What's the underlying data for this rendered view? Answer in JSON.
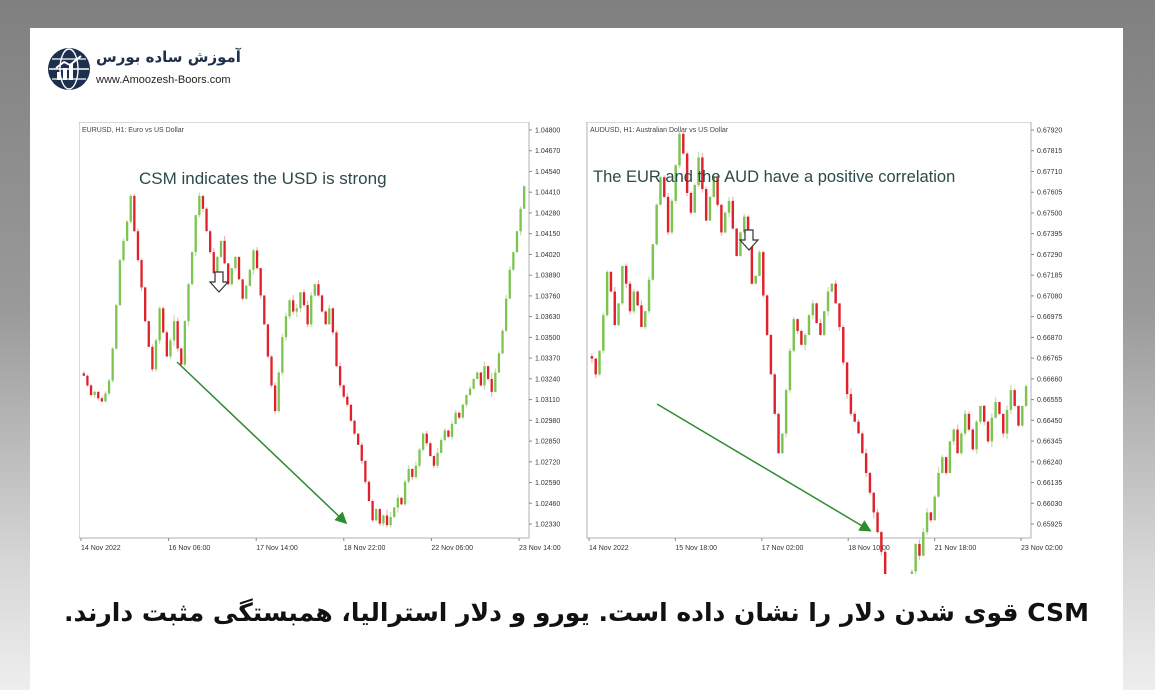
{
  "logo": {
    "title": "آموزش ساده بورس",
    "url": "www.Amoozesh-Boors.com",
    "icon": "globe-chart-icon"
  },
  "caption": "CSM قوی شدن دلار را نشان داده است. یورو و دلار استرالیا، همبستگی مثبت دارند.",
  "colors": {
    "bull": "#7cc450",
    "bear": "#e0202a",
    "bull_soft": "#c9dcb0",
    "bear_soft": "#e9b6b6",
    "arrow": "#2e8b2e",
    "annotation": "#2c4a4a"
  },
  "chart_data": [
    {
      "type": "candlestick",
      "symbol_label": "EURUSD, H1:  Euro vs US Dollar",
      "annotation": "CSM indicates the USD is strong",
      "trend_arrow": {
        "from": [
          "16 Nov 00:00",
          1.035
        ],
        "to": [
          "18 Nov 22:00",
          1.024
        ]
      },
      "marker_arrow": {
        "at": [
          "16 Nov 18:00",
          1.041
        ]
      },
      "x_ticks": [
        "14 Nov 2022",
        "16 Nov 06:00",
        "17 Nov 14:00",
        "18 Nov 22:00",
        "22 Nov 06:00",
        "23 Nov 14:00"
      ],
      "y_ticks": [
        "1.04800",
        "1.04670",
        "1.04540",
        "1.04410",
        "1.04280",
        "1.04150",
        "1.04020",
        "1.03890",
        "1.03760",
        "1.03630",
        "1.03500",
        "1.03370",
        "1.03240",
        "1.03110",
        "1.02980",
        "1.02850",
        "1.02720",
        "1.02590",
        "1.02460",
        "1.02330"
      ],
      "ylim": [
        1.0227,
        1.0486
      ],
      "closes": [
        1.0328,
        1.0322,
        1.0316,
        1.0318,
        1.0314,
        1.0312,
        1.0317,
        1.0325,
        1.0345,
        1.0372,
        1.04,
        1.0412,
        1.0424,
        1.044,
        1.0418,
        1.04,
        1.0383,
        1.0362,
        1.0346,
        1.0332,
        1.035,
        1.037,
        1.0355,
        1.034,
        1.035,
        1.0362,
        1.0345,
        1.0335,
        1.0362,
        1.0385,
        1.0405,
        1.0428,
        1.044,
        1.0432,
        1.0418,
        1.0405,
        1.0392,
        1.0402,
        1.0412,
        1.0398,
        1.0385,
        1.0395,
        1.0402,
        1.0388,
        1.0376,
        1.0384,
        1.0394,
        1.0406,
        1.0395,
        1.0378,
        1.036,
        1.034,
        1.0322,
        1.0306,
        1.033,
        1.0352,
        1.0365,
        1.0375,
        1.0368,
        1.037,
        1.038,
        1.0372,
        1.036,
        1.0378,
        1.0385,
        1.0378,
        1.0368,
        1.036,
        1.037,
        1.0355,
        1.0334,
        1.0322,
        1.0315,
        1.031,
        1.03,
        1.0292,
        1.0285,
        1.0275,
        1.0262,
        1.025,
        1.0238,
        1.0245,
        1.0236,
        1.0241,
        1.0235,
        1.024,
        1.0246,
        1.0252,
        1.0248,
        1.0262,
        1.027,
        1.0265,
        1.0272,
        1.0282,
        1.0292,
        1.0286,
        1.0278,
        1.0272,
        1.028,
        1.0288,
        1.0294,
        1.029,
        1.0298,
        1.0305,
        1.0302,
        1.031,
        1.0316,
        1.032,
        1.0326,
        1.033,
        1.0322,
        1.0334,
        1.0326,
        1.0318,
        1.033,
        1.0342,
        1.0356,
        1.0376,
        1.0394,
        1.0405,
        1.0418,
        1.0432,
        1.0446
      ]
    },
    {
      "type": "candlestick",
      "symbol_label": "AUDUSD, H1:  Australian Dollar vs US Dollar",
      "annotation": "The EUR and the AUD have a positive correlation",
      "trend_arrow": {
        "from": [
          "15 Nov 06:00",
          0.666
        ],
        "to": [
          "18 Nov 10:00",
          0.66
        ]
      },
      "marker_arrow": {
        "at": [
          "16 Nov 22:00",
          0.6755
        ]
      },
      "x_ticks": [
        "14 Nov 2022",
        "15 Nov 18:00",
        "17 Nov 02:00",
        "18 Nov 10:00",
        "21 Nov 18:00",
        "23 Nov 02:00"
      ],
      "y_ticks": [
        "0.67920",
        "0.67815",
        "0.67710",
        "0.67605",
        "0.67500",
        "0.67395",
        "0.67290",
        "0.67185",
        "0.67080",
        "0.66975",
        "0.66870",
        "0.66765",
        "0.66660",
        "0.66555",
        "0.66450",
        "0.66345",
        "0.66240",
        "0.66135",
        "0.66030",
        "0.65925"
      ],
      "ylim": [
        0.6587,
        0.6798
      ],
      "closes": [
        0.6678,
        0.667,
        0.6682,
        0.67,
        0.6722,
        0.6712,
        0.6695,
        0.6706,
        0.6725,
        0.6716,
        0.6702,
        0.6712,
        0.6705,
        0.6694,
        0.6702,
        0.6718,
        0.6736,
        0.6756,
        0.677,
        0.676,
        0.6742,
        0.6758,
        0.6776,
        0.6792,
        0.6782,
        0.6762,
        0.6752,
        0.6766,
        0.678,
        0.6764,
        0.6748,
        0.676,
        0.677,
        0.6756,
        0.6742,
        0.6752,
        0.6758,
        0.6744,
        0.673,
        0.6742,
        0.675,
        0.6736,
        0.6716,
        0.672,
        0.6732,
        0.671,
        0.669,
        0.667,
        0.665,
        0.663,
        0.664,
        0.6662,
        0.6682,
        0.6698,
        0.6692,
        0.6685,
        0.669,
        0.67,
        0.6706,
        0.6696,
        0.669,
        0.6702,
        0.6712,
        0.6716,
        0.6706,
        0.6694,
        0.6676,
        0.666,
        0.665,
        0.6646,
        0.664,
        0.663,
        0.662,
        0.661,
        0.66,
        0.659,
        0.658,
        0.6565,
        0.6552,
        0.654,
        0.6534,
        0.6546,
        0.6554,
        0.656,
        0.657,
        0.6584,
        0.6578,
        0.659,
        0.66,
        0.6596,
        0.6608,
        0.662,
        0.6628,
        0.662,
        0.6636,
        0.6642,
        0.663,
        0.664,
        0.665,
        0.6642,
        0.6632,
        0.6646,
        0.6654,
        0.6646,
        0.6636,
        0.6648,
        0.6656,
        0.665,
        0.664,
        0.6652,
        0.6662,
        0.6654,
        0.6644,
        0.6654,
        0.6664
      ]
    }
  ]
}
